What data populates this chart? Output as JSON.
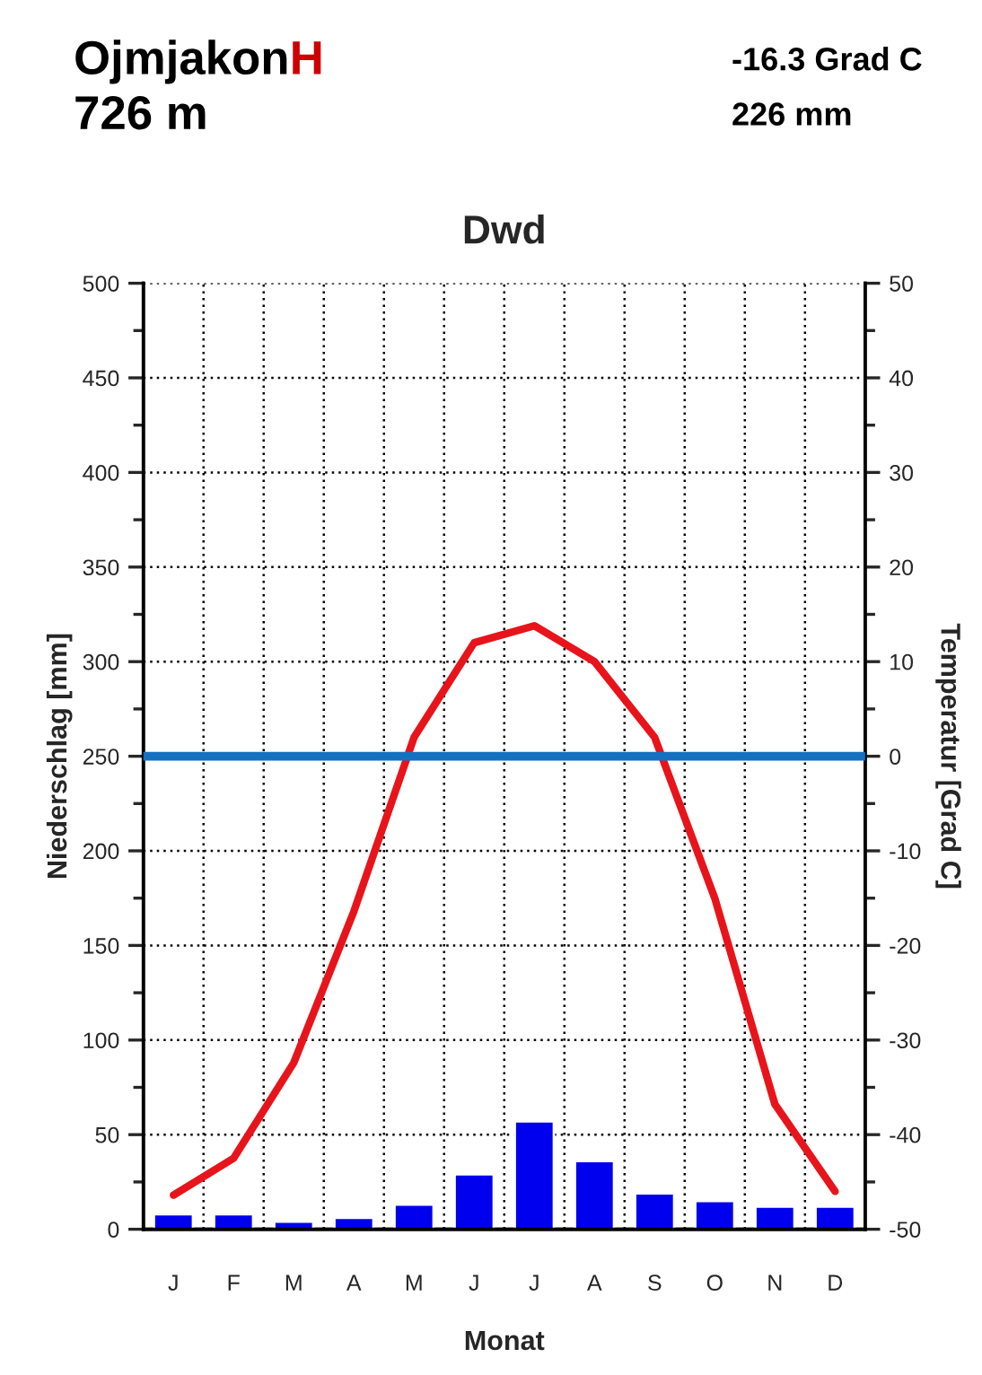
{
  "chart_data": {
    "type": "bar",
    "title": "Dwd",
    "xlabel": "Monat",
    "ylabel": "Niederschlag [mm]",
    "y2label": "Temperatur [Grad C]",
    "annotations": [
      "Ojmjakon",
      "H",
      "726 m",
      "-16.3 Grad C",
      "226 mm"
    ],
    "categories": [
      "J",
      "F",
      "M",
      "A",
      "M",
      "J",
      "J",
      "A",
      "S",
      "O",
      "N",
      "D"
    ],
    "series": [
      {
        "color": "#0000ee",
        "values": [
          8,
          8,
          4,
          6,
          13,
          29,
          57,
          36,
          19,
          15,
          12,
          12
        ]
      },
      {
        "type": "line",
        "axis": "y2",
        "color": "#e8141b",
        "values": [
          -46.4,
          -42.5,
          -32.4,
          -16.4,
          2,
          12,
          13.8,
          10,
          2,
          -15,
          -36.8,
          -46
        ]
      }
    ],
    "ylim": [
      0,
      500
    ],
    "yticks": [
      0,
      {
        "value": 25,
        "label": null
      },
      50,
      {
        "value": 75,
        "label": null
      },
      100,
      {
        "value": 125,
        "label": null
      },
      150,
      {
        "value": 175,
        "label": null
      },
      200,
      {
        "value": 225,
        "label": null
      },
      250,
      {
        "value": 275,
        "label": null
      },
      300,
      {
        "value": 325,
        "label": null
      },
      350,
      {
        "value": 375,
        "label": null
      },
      400,
      {
        "value": 425,
        "label": null
      },
      450,
      {
        "value": 475,
        "label": null
      },
      500
    ],
    "y2lim": [
      -50,
      50
    ],
    "y2ticks": [
      -50,
      {
        "value": -45,
        "label": null
      },
      -40,
      {
        "value": -35,
        "label": null
      },
      -30,
      {
        "value": -25,
        "label": null
      },
      -20,
      {
        "value": -15,
        "label": null
      },
      -10,
      {
        "value": -5,
        "label": null
      },
      0,
      {
        "value": 5,
        "label": null
      },
      10,
      {
        "value": 15,
        "label": null
      },
      20,
      {
        "value": 25,
        "label": null
      },
      30,
      {
        "value": 35,
        "label": null
      },
      40,
      {
        "value": 45,
        "label": null
      },
      50
    ],
    "ref_lines": [
      {
        "axis": "y2",
        "value": 0,
        "color": "#1670c0",
        "line_style": "solid"
      }
    ],
    "grid": true,
    "legend": false
  }
}
